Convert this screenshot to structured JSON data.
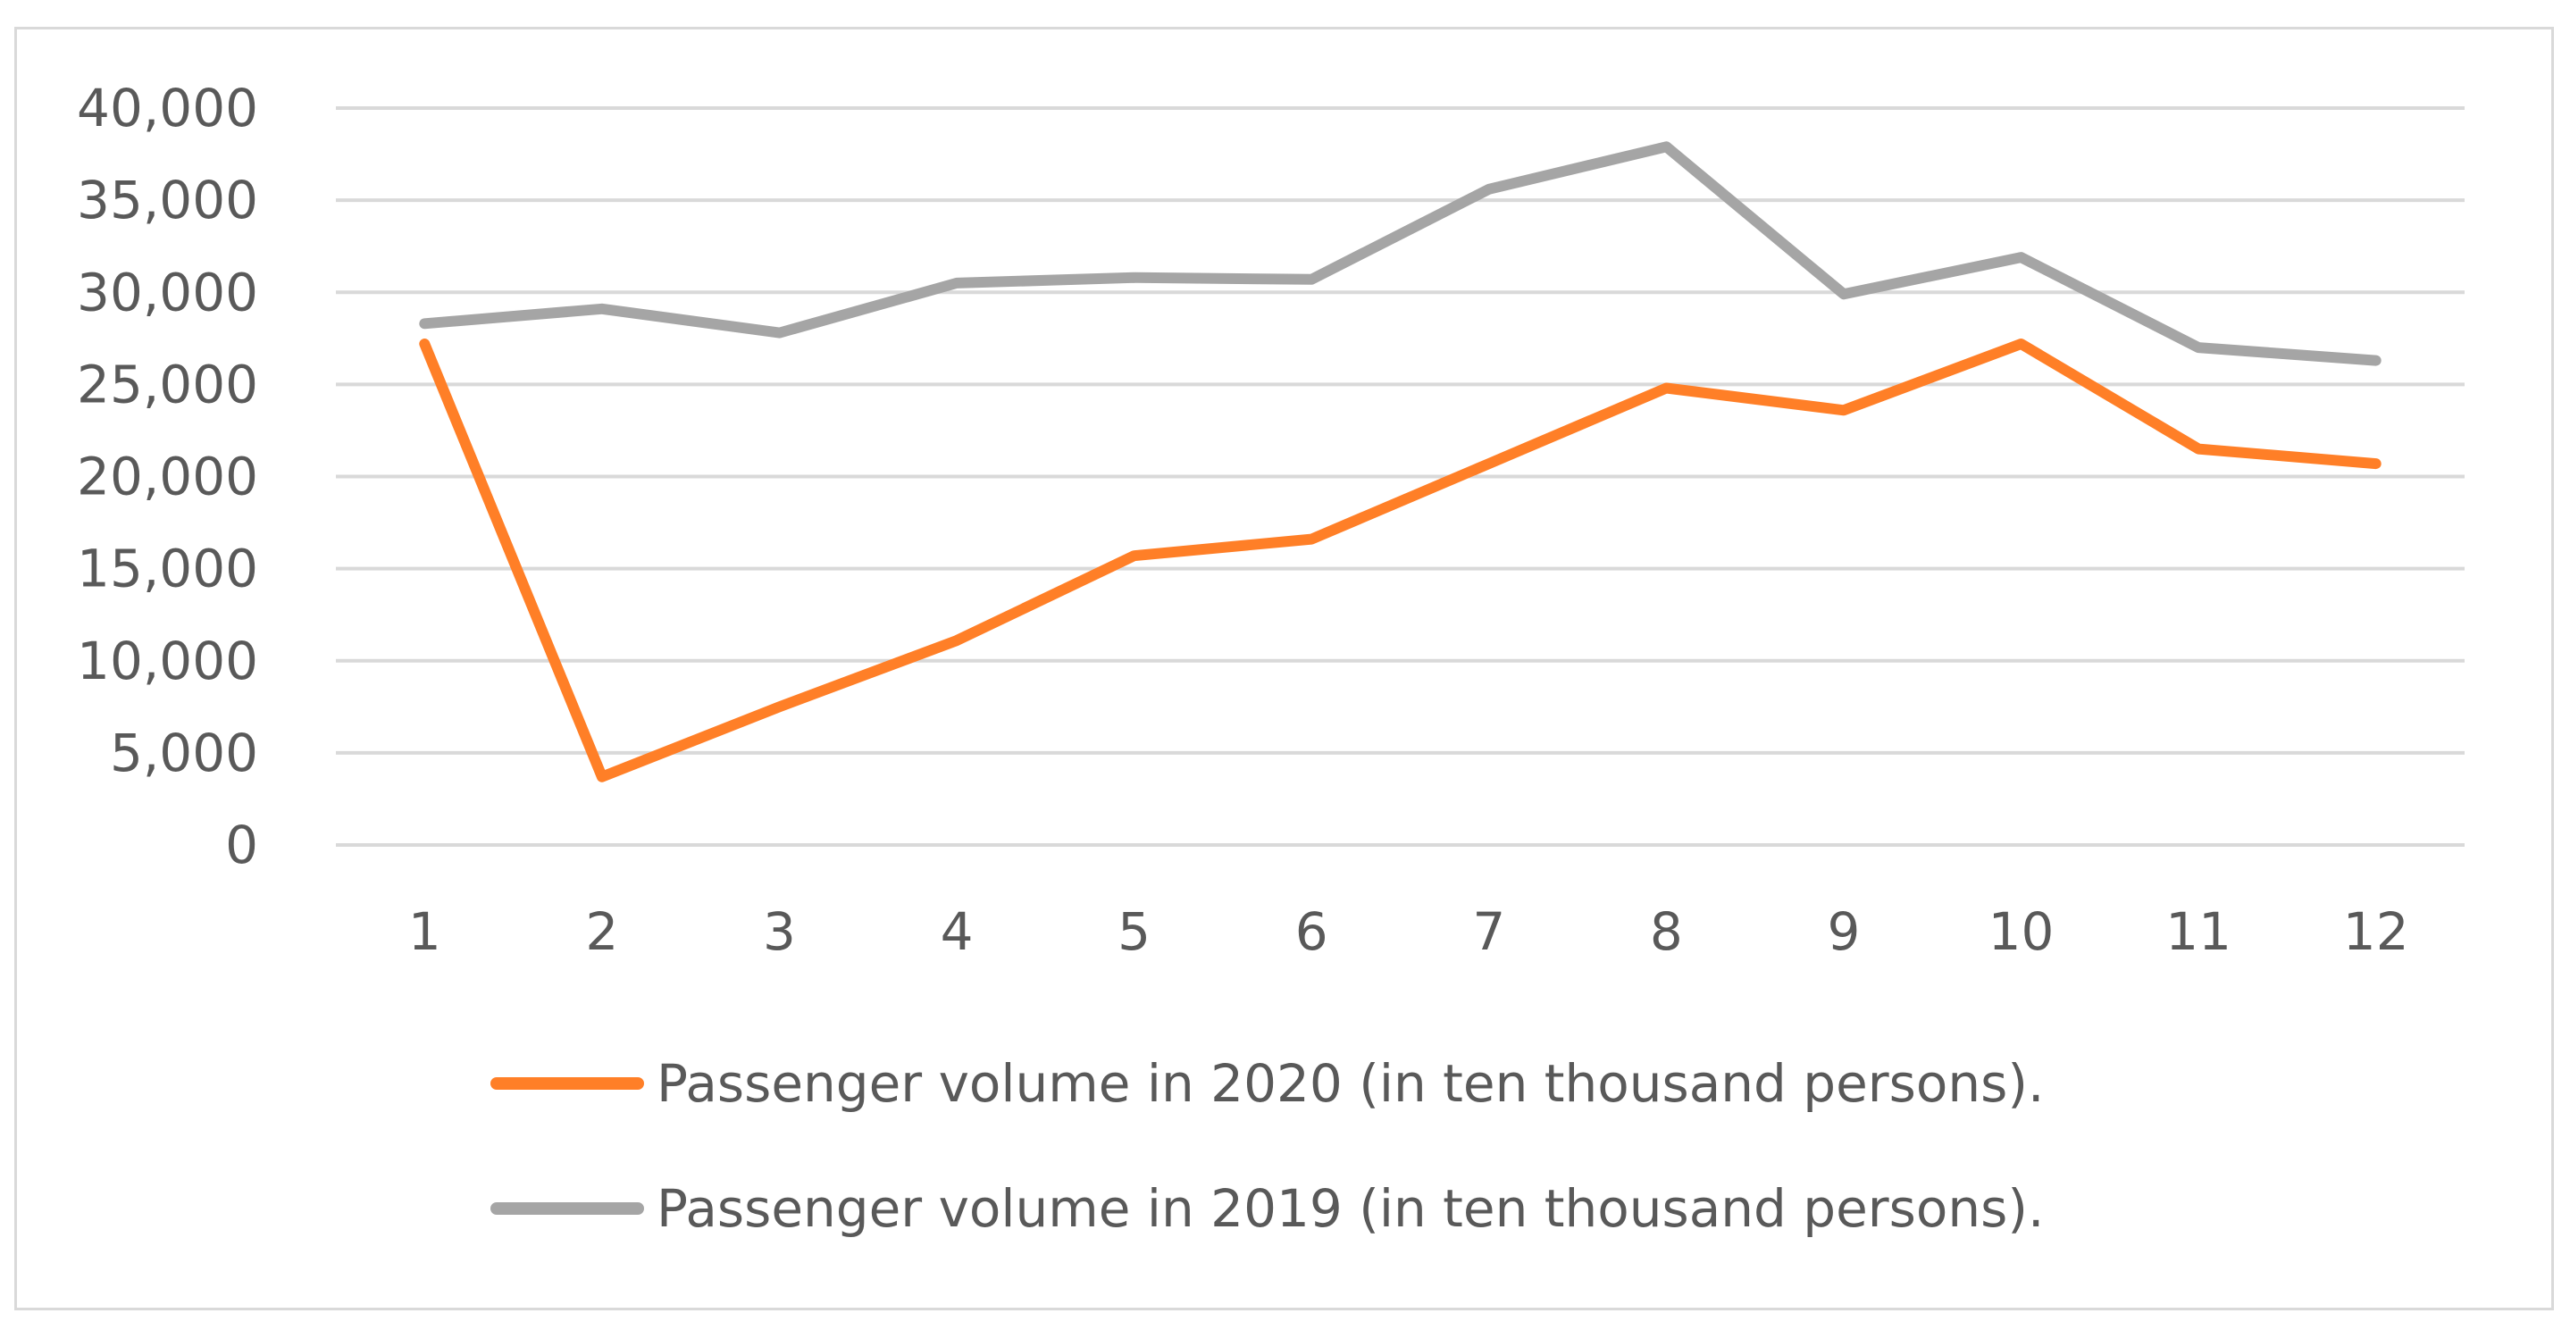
{
  "chart_data": {
    "type": "line",
    "title": "",
    "xlabel": "",
    "ylabel": "",
    "categories": [
      "1",
      "2",
      "3",
      "4",
      "5",
      "6",
      "7",
      "8",
      "9",
      "10",
      "11",
      "12"
    ],
    "ylim": [
      0,
      40000
    ],
    "yticks": [
      "0",
      "5,000",
      "10,000",
      "15,000",
      "20,000",
      "25,000",
      "30,000",
      "35,000",
      "40,000"
    ],
    "grid": true,
    "legend_position": "bottom",
    "series": [
      {
        "name": "Passenger volume in 2020 (in ten thousand persons).",
        "color": "#ff7f27",
        "values": [
          27200,
          3700,
          7500,
          11100,
          15700,
          16600,
          20700,
          24800,
          23600,
          27200,
          21500,
          20700
        ]
      },
      {
        "name": "Passenger volume in 2019 (in ten thousand persons).",
        "color": "#a5a5a5",
        "values": [
          28300,
          29100,
          27800,
          30500,
          30800,
          30700,
          35600,
          37900,
          29900,
          31900,
          27000,
          26300
        ]
      }
    ]
  }
}
